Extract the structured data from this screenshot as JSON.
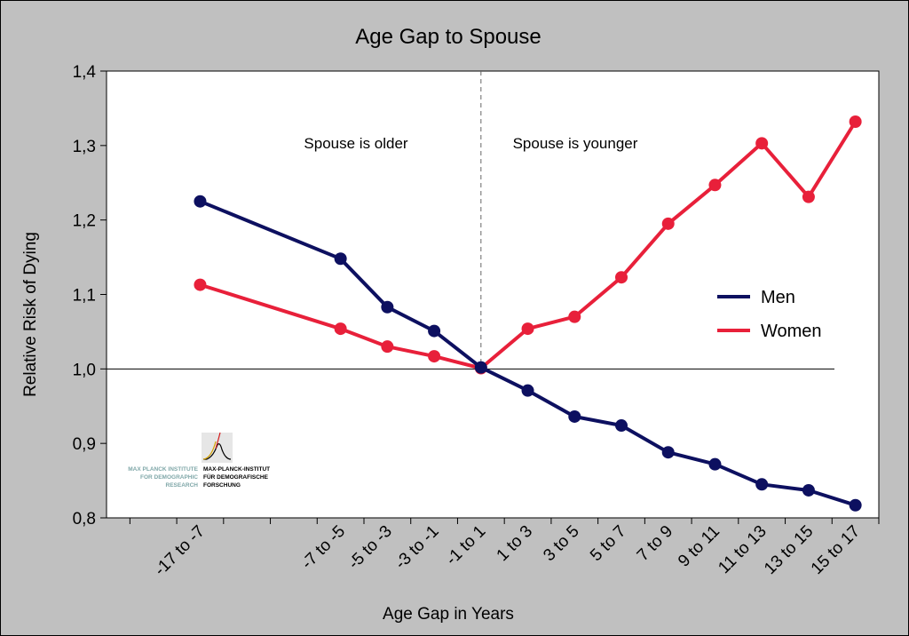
{
  "chart_data": {
    "type": "line",
    "title": "Age Gap to Spouse",
    "xlabel": "Age Gap in Years",
    "ylabel": "Relative Risk of Dying",
    "ylim": [
      0.8,
      1.4
    ],
    "yticks": [
      "0,8",
      "0,9",
      "1,0",
      "1,1",
      "1,2",
      "1,3",
      "1,4"
    ],
    "yticks_values": [
      0.8,
      0.9,
      1.0,
      1.1,
      1.2,
      1.3,
      1.4
    ],
    "categories": [
      "-17 to -7",
      "-7 to -5",
      "-5 to -3",
      "-3 to -1",
      "-1 to 1",
      "1 to 3",
      "3 to 5",
      "5 to 7",
      "7 to 9",
      "9 to 11",
      "11 to 13",
      "13 to 15",
      "15 to 17"
    ],
    "x": [
      -12,
      -6,
      -4,
      -2,
      0,
      2,
      4,
      6,
      8,
      10,
      12,
      14,
      16
    ],
    "xlim": [
      -16,
      17
    ],
    "reference_line": 1.0,
    "divider_x": 0,
    "annotations": {
      "left": "Spouse is older",
      "right": "Spouse is younger"
    },
    "legend_position": "right",
    "series": [
      {
        "name": "Men",
        "color": "#0d1060",
        "values": [
          1.225,
          1.148,
          1.083,
          1.051,
          1.002,
          0.971,
          0.936,
          0.924,
          0.888,
          0.872,
          0.845,
          0.837,
          0.817
        ]
      },
      {
        "name": "Women",
        "color": "#e8203a",
        "values": [
          1.113,
          1.054,
          1.03,
          1.017,
          1.001,
          1.054,
          1.07,
          1.123,
          1.195,
          1.247,
          1.303,
          1.231,
          1.332
        ]
      }
    ]
  },
  "logo": {
    "english": [
      "MAX PLANCK INSTITUTE",
      "FOR DEMOGRAPHIC",
      "RESEARCH"
    ],
    "german": [
      "MAX-PLANCK-INSTITUT",
      "FÜR DEMOGRAFISCHE",
      "FORSCHUNG"
    ]
  }
}
